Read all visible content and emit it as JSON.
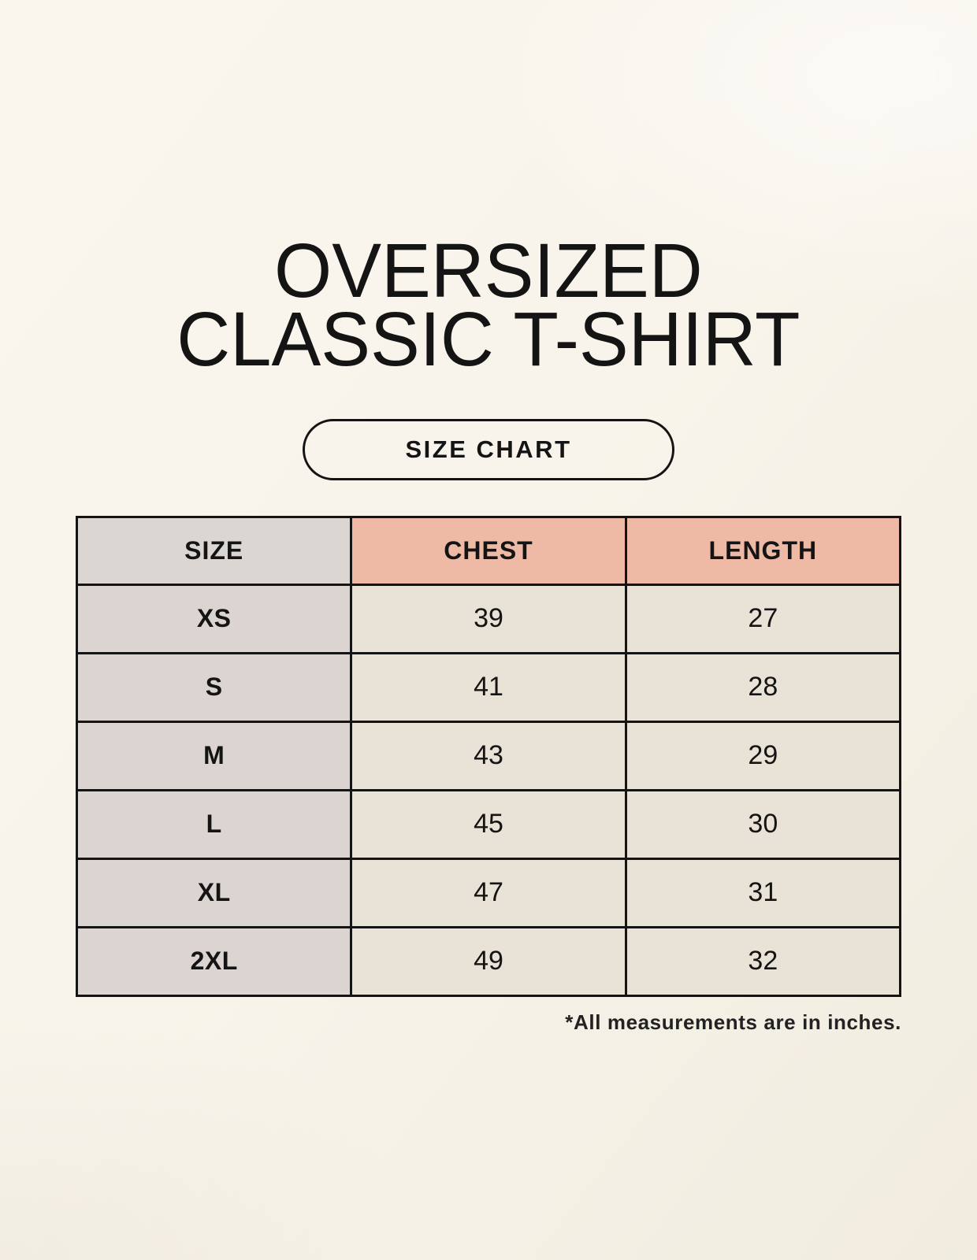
{
  "page": {
    "title_line1": "OVERSIZED",
    "title_line2": "CLASSIC T-SHIRT",
    "button_label": "SIZE CHART",
    "footnote": "*All measurements are in inches."
  },
  "chart_data": {
    "type": "table",
    "title": "Oversized Classic T-Shirt Size Chart",
    "columns": [
      "SIZE",
      "CHEST",
      "LENGTH"
    ],
    "rows": [
      {
        "size": "XS",
        "chest": 39,
        "length": 27
      },
      {
        "size": "S",
        "chest": 41,
        "length": 28
      },
      {
        "size": "M",
        "chest": 43,
        "length": 29
      },
      {
        "size": "L",
        "chest": 45,
        "length": 30
      },
      {
        "size": "XL",
        "chest": 47,
        "length": 31
      },
      {
        "size": "2XL",
        "chest": 49,
        "length": 32
      }
    ],
    "units": "inches"
  },
  "colors": {
    "background": "#f8f4eb",
    "header_size_bg": "#dcd6d2",
    "header_measure_bg": "#eeb9a5",
    "row_label_bg": "#dbd4d0",
    "row_value_bg": "#e9e2d6",
    "border": "#141414",
    "text": "#141414"
  }
}
